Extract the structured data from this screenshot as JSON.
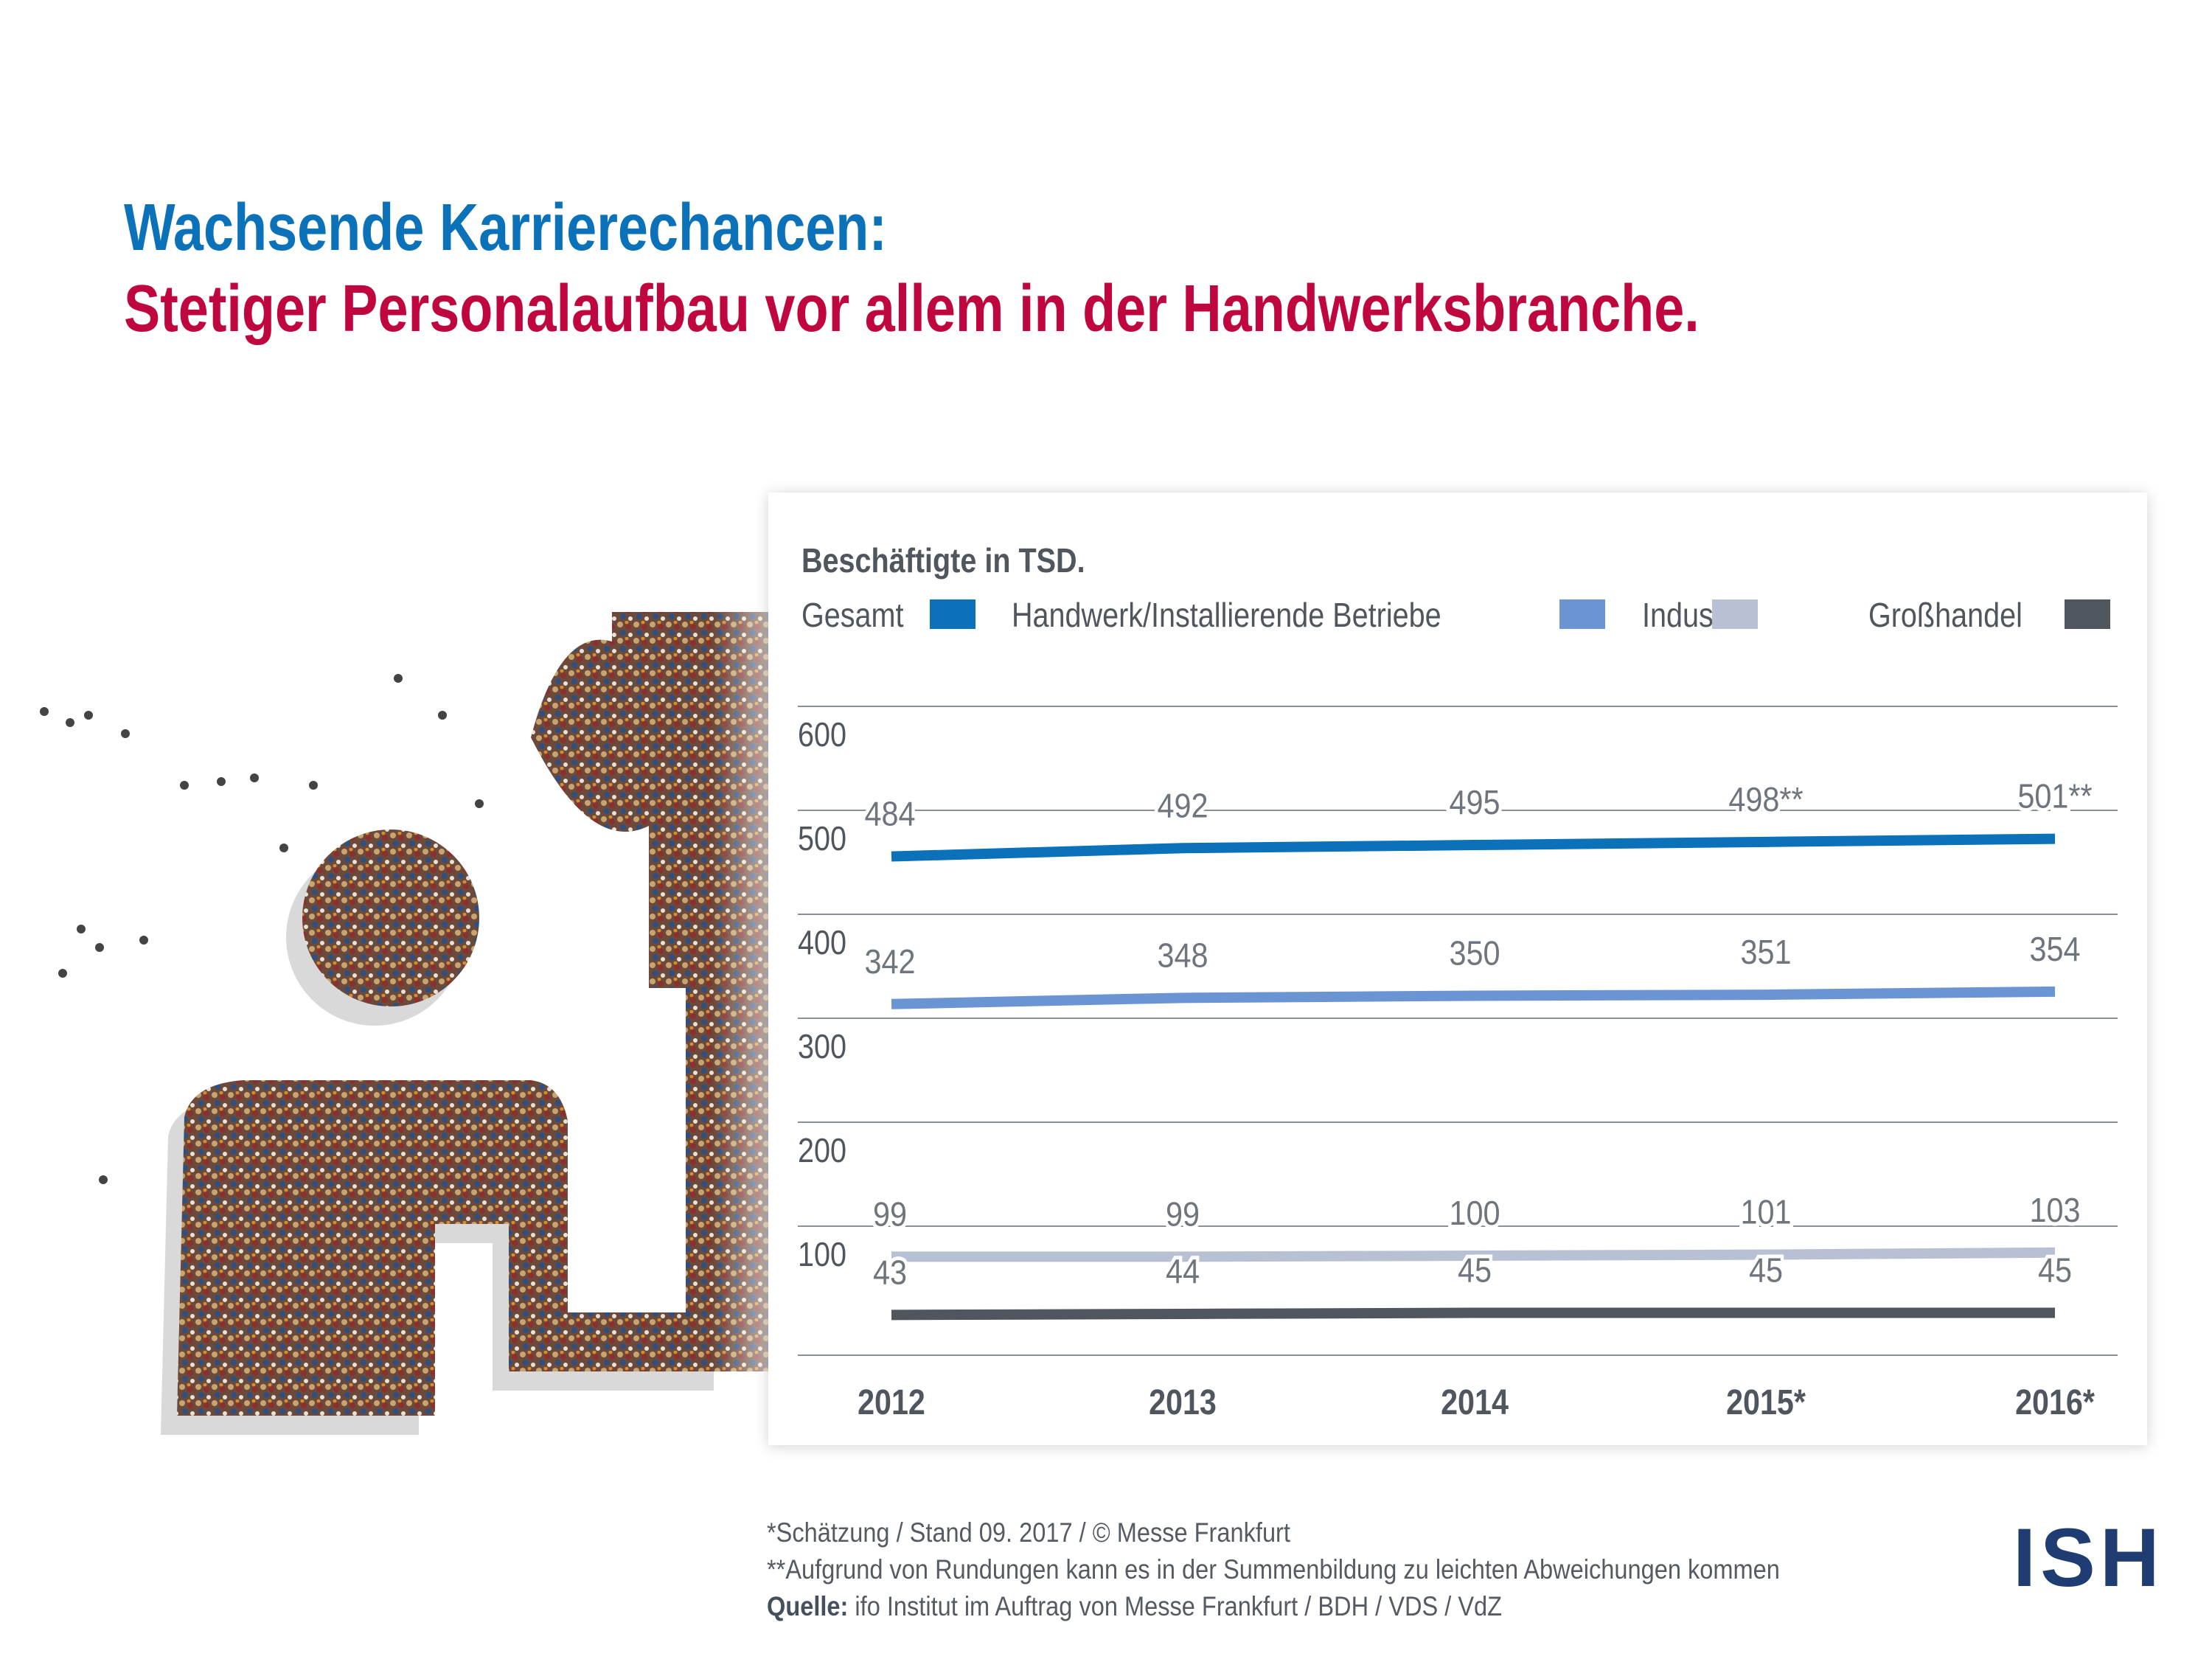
{
  "title": {
    "line1": "Wachsende Karrierechancen:",
    "line2": "Stetiger Personalaufbau vor allem in der Handwerksbranche."
  },
  "chart_data": {
    "type": "line",
    "title": "Beschäftigte in TSD.",
    "categories": [
      "2012",
      "2013",
      "2014",
      "2015*",
      "2016*"
    ],
    "ylim": [
      0,
      600
    ],
    "yticks": [
      100,
      200,
      300,
      400,
      500,
      600
    ],
    "grid": true,
    "legend_position": "top",
    "series": [
      {
        "name": "Gesamt",
        "color": "#0b72b9",
        "values": [
          484,
          492,
          495,
          498,
          501
        ],
        "labels": [
          "484",
          "492",
          "495",
          "498**",
          "501**"
        ]
      },
      {
        "name": "Handwerk/Installierende Betriebe",
        "color": "#6a94d2",
        "values": [
          342,
          348,
          350,
          351,
          354
        ],
        "labels": [
          "342",
          "348",
          "350",
          "351",
          "354"
        ]
      },
      {
        "name": "Industrie",
        "color": "#b8c0d3",
        "values": [
          99,
          99,
          100,
          101,
          103
        ],
        "labels": [
          "99",
          "99",
          "100",
          "101",
          "103"
        ]
      },
      {
        "name": "Großhandel",
        "color": "#4f565e",
        "values": [
          43,
          44,
          45,
          45,
          45
        ],
        "labels": [
          "43",
          "44",
          "45",
          "45",
          "45"
        ]
      }
    ]
  },
  "footnotes": {
    "line1": "*Schätzung / Stand 09. 2017 / © Messe Frankfurt",
    "line2": "**Aufgrund von Rundungen kann es in der Summenbildung zu leichten Abweichungen kommen",
    "source_label": "Quelle:",
    "source_text": " ifo Institut im Auftrag von Messe Frankfurt / BDH / VDS / VdZ"
  },
  "logo": "ISH"
}
